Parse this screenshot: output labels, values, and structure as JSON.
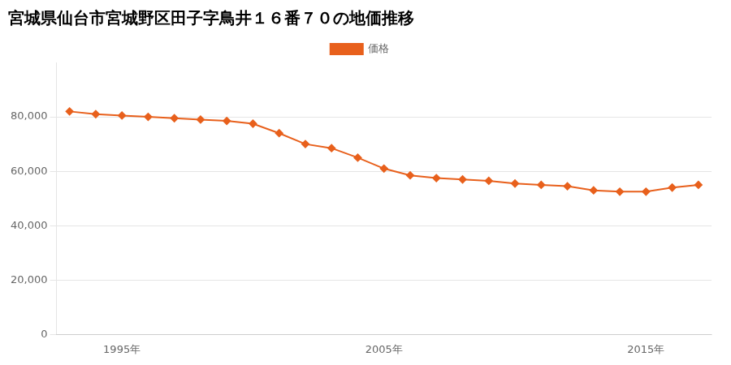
{
  "chart_data": {
    "type": "line",
    "title": "宮城県仙台市宮城野区田子字鳥井１６番７０の地価推移",
    "x": [
      1993,
      1994,
      1995,
      1996,
      1997,
      1998,
      1999,
      2000,
      2001,
      2002,
      2003,
      2004,
      2005,
      2006,
      2007,
      2008,
      2009,
      2010,
      2011,
      2012,
      2013,
      2014,
      2015,
      2016,
      2017
    ],
    "series": [
      {
        "name": "価格",
        "color": "#e8601c",
        "marker": "diamond",
        "values": [
          82000,
          81000,
          80500,
          80000,
          79500,
          79000,
          78500,
          77500,
          74000,
          70000,
          68500,
          65000,
          61000,
          58500,
          57500,
          57000,
          56500,
          55500,
          55000,
          54500,
          53000,
          52500,
          52500,
          54000,
          55000
        ]
      }
    ],
    "xlim": [
      1992.5,
      2017.5
    ],
    "xticks": [
      {
        "value": 1995,
        "label": "1995年"
      },
      {
        "value": 2005,
        "label": "2005年"
      },
      {
        "value": 2015,
        "label": "2015年"
      }
    ],
    "ylim": [
      0,
      100000
    ],
    "yticks": [
      0,
      {
        "value": 20000,
        "label": "20,000"
      },
      {
        "value": 40000,
        "label": "40,000"
      },
      {
        "value": 60000,
        "label": "60,000"
      },
      {
        "value": 80000,
        "label": "80,000"
      }
    ],
    "grid": "y",
    "legend": "top"
  }
}
